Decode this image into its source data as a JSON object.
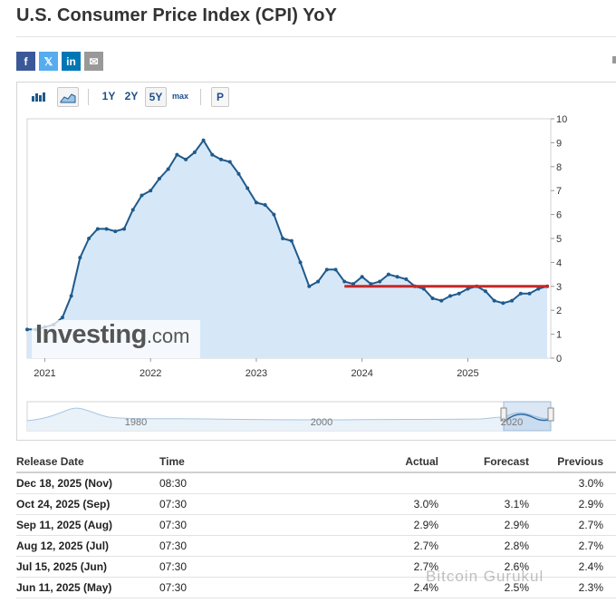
{
  "page": {
    "title": "U.S. Consumer Price Index (CPI) YoY"
  },
  "share": {
    "facebook": "f",
    "twitter": "𝕏",
    "linkedin": "in",
    "email": "✉"
  },
  "toolbar": {
    "bar_icon": "bar-chart-icon",
    "area_icon": "area-chart-icon",
    "r1y": "1Y",
    "r2y": "2Y",
    "r5y": "5Y",
    "max": "max",
    "p": "P"
  },
  "watermark": {
    "brand": "Investing",
    "suffix": ".com",
    "overlay": "Bitcoin Gurukul"
  },
  "chart_data": {
    "type": "area",
    "xlabel": "",
    "ylabel": "",
    "ylim": [
      0,
      10
    ],
    "yticks": [
      0,
      1,
      2,
      3,
      4,
      5,
      6,
      7,
      8,
      9,
      10
    ],
    "xticks": [
      2021,
      2022,
      2023,
      2024,
      2025
    ],
    "x_tick_labels": [
      "2021",
      "2022",
      "2023",
      "2024",
      "2025"
    ],
    "x_start": "2020-11",
    "x_end": "2025-10",
    "series": [
      {
        "values": [
          {
            "x": "2020-11",
            "y": 1.2
          },
          {
            "x": "2020-12",
            "y": 1.2
          },
          {
            "x": "2021-01",
            "y": 1.3
          },
          {
            "x": "2021-02",
            "y": 1.4
          },
          {
            "x": "2021-03",
            "y": 1.7
          },
          {
            "x": "2021-04",
            "y": 2.6
          },
          {
            "x": "2021-05",
            "y": 4.2
          },
          {
            "x": "2021-06",
            "y": 5.0
          },
          {
            "x": "2021-07",
            "y": 5.4
          },
          {
            "x": "2021-08",
            "y": 5.4
          },
          {
            "x": "2021-09",
            "y": 5.3
          },
          {
            "x": "2021-10",
            "y": 5.4
          },
          {
            "x": "2021-11",
            "y": 6.2
          },
          {
            "x": "2021-12",
            "y": 6.8
          },
          {
            "x": "2022-01",
            "y": 7.0
          },
          {
            "x": "2022-02",
            "y": 7.5
          },
          {
            "x": "2022-03",
            "y": 7.9
          },
          {
            "x": "2022-04",
            "y": 8.5
          },
          {
            "x": "2022-05",
            "y": 8.3
          },
          {
            "x": "2022-06",
            "y": 8.6
          },
          {
            "x": "2022-07",
            "y": 9.1
          },
          {
            "x": "2022-08",
            "y": 8.5
          },
          {
            "x": "2022-09",
            "y": 8.3
          },
          {
            "x": "2022-10",
            "y": 8.2
          },
          {
            "x": "2022-11",
            "y": 7.7
          },
          {
            "x": "2022-12",
            "y": 7.1
          },
          {
            "x": "2023-01",
            "y": 6.5
          },
          {
            "x": "2023-02",
            "y": 6.4
          },
          {
            "x": "2023-03",
            "y": 6.0
          },
          {
            "x": "2023-04",
            "y": 5.0
          },
          {
            "x": "2023-05",
            "y": 4.9
          },
          {
            "x": "2023-06",
            "y": 4.0
          },
          {
            "x": "2023-07",
            "y": 3.0
          },
          {
            "x": "2023-08",
            "y": 3.2
          },
          {
            "x": "2023-09",
            "y": 3.7
          },
          {
            "x": "2023-10",
            "y": 3.7
          },
          {
            "x": "2023-11",
            "y": 3.2
          },
          {
            "x": "2023-12",
            "y": 3.1
          },
          {
            "x": "2024-01",
            "y": 3.4
          },
          {
            "x": "2024-02",
            "y": 3.1
          },
          {
            "x": "2024-03",
            "y": 3.2
          },
          {
            "x": "2024-04",
            "y": 3.5
          },
          {
            "x": "2024-05",
            "y": 3.4
          },
          {
            "x": "2024-06",
            "y": 3.3
          },
          {
            "x": "2024-07",
            "y": 3.0
          },
          {
            "x": "2024-08",
            "y": 2.9
          },
          {
            "x": "2024-09",
            "y": 2.5
          },
          {
            "x": "2024-10",
            "y": 2.4
          },
          {
            "x": "2024-11",
            "y": 2.6
          },
          {
            "x": "2024-12",
            "y": 2.7
          },
          {
            "x": "2025-01",
            "y": 2.9
          },
          {
            "x": "2025-02",
            "y": 3.0
          },
          {
            "x": "2025-03",
            "y": 2.8
          },
          {
            "x": "2025-04",
            "y": 2.4
          },
          {
            "x": "2025-05",
            "y": 2.3
          },
          {
            "x": "2025-06",
            "y": 2.4
          },
          {
            "x": "2025-07",
            "y": 2.7
          },
          {
            "x": "2025-08",
            "y": 2.7
          },
          {
            "x": "2025-09",
            "y": 2.9
          },
          {
            "x": "2025-10",
            "y": 3.0
          }
        ]
      }
    ],
    "reference_line": {
      "y": 3.0,
      "x_from": "2023-11",
      "x_to": "2025-10",
      "color": "#c62828"
    },
    "colors": {
      "line": "#1f5a8c",
      "fill": "#d6e8f8"
    },
    "navigator": {
      "labels": [
        "1980",
        "2000",
        "2020"
      ]
    }
  },
  "table": {
    "headers": [
      "Release Date",
      "Time",
      "Actual",
      "Forecast",
      "Previous"
    ],
    "rows": [
      {
        "date": "Dec 18, 2025 (Nov)",
        "time": "08:30",
        "actual": "",
        "actual_color": "plain",
        "forecast": "",
        "previous": "3.0%"
      },
      {
        "date": "Oct 24, 2025 (Sep)",
        "time": "07:30",
        "actual": "3.0%",
        "actual_color": "red",
        "forecast": "3.1%",
        "previous": "2.9%"
      },
      {
        "date": "Sep 11, 2025 (Aug)",
        "time": "07:30",
        "actual": "2.9%",
        "actual_color": "plain",
        "forecast": "2.9%",
        "previous": "2.7%"
      },
      {
        "date": "Aug 12, 2025 (Jul)",
        "time": "07:30",
        "actual": "2.7%",
        "actual_color": "red",
        "forecast": "2.8%",
        "previous": "2.7%"
      },
      {
        "date": "Jul 15, 2025 (Jun)",
        "time": "07:30",
        "actual": "2.7%",
        "actual_color": "green",
        "forecast": "2.6%",
        "previous": "2.4%"
      },
      {
        "date": "Jun 11, 2025 (May)",
        "time": "07:30",
        "actual": "2.4%",
        "actual_color": "red",
        "forecast": "2.5%",
        "previous": "2.3%"
      }
    ]
  }
}
